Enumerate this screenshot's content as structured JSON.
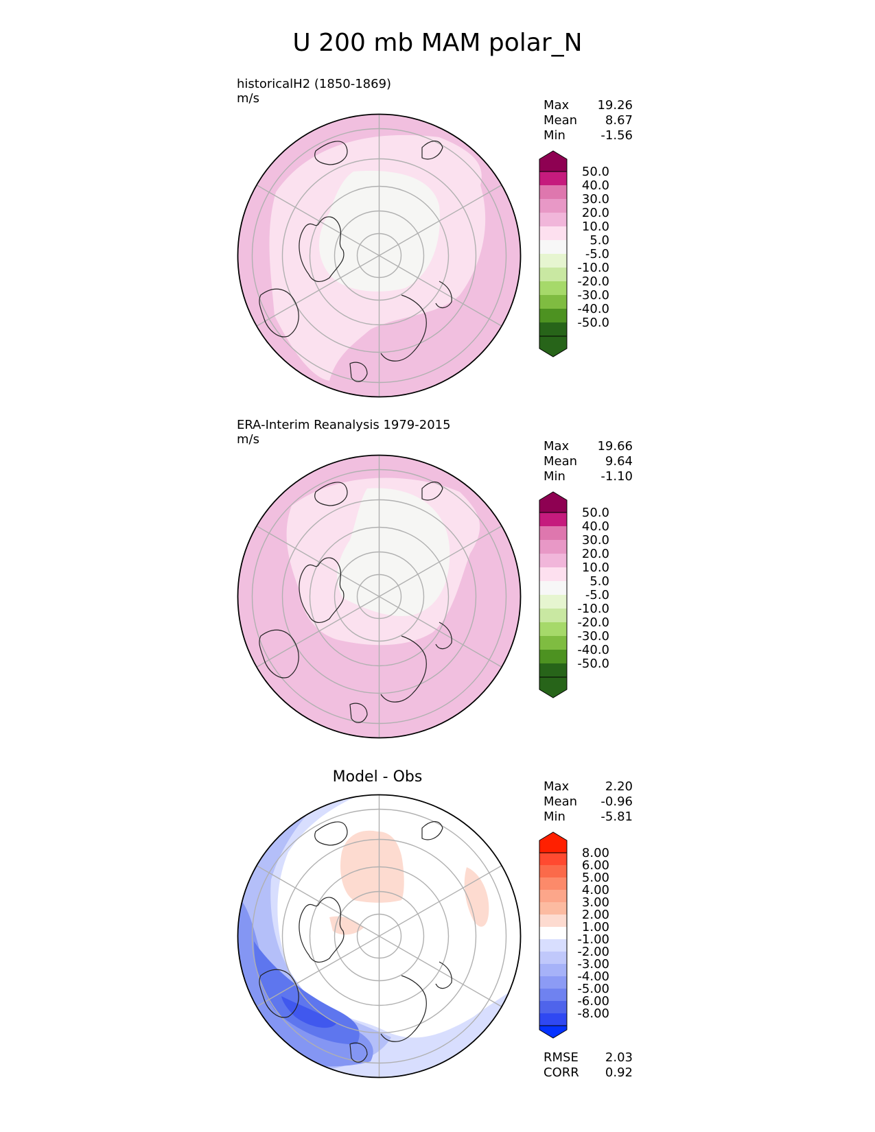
{
  "figure": {
    "title": "U 200 mb MAM polar_N"
  },
  "colors": {
    "land_outline": "#222222",
    "grid": "#b0b0b0",
    "pink_scale": [
      "#f7f7f7",
      "#fde0ef",
      "#f1b6da",
      "#e898c6",
      "#de77ae",
      "#c51b7d",
      "#8e0152"
    ],
    "green_scale": [
      "#f7f7f7",
      "#e6f5d0",
      "#c9e8a2",
      "#a6d96a",
      "#7fbc41",
      "#4d9221",
      "#276419"
    ],
    "diff_pos": [
      "#fddbd0",
      "#fcbba1",
      "#fc9272",
      "#fb6a4a",
      "#ff4a30",
      "#ff2000"
    ],
    "diff_neg": [
      "#d8defe",
      "#c0c8fb",
      "#a6b2f8",
      "#8c9bf5",
      "#6f82f0",
      "#4f64eb",
      "#2f48f2",
      "#0532ff"
    ]
  },
  "chart_data": [
    {
      "type": "polar_contour_map",
      "panel_title": "historicalH2 (1850-1869)",
      "units": "m/s",
      "stats": {
        "max_label": "Max",
        "max": "19.26",
        "mean_label": "Mean",
        "mean": "8.67",
        "min_label": "Min",
        "min": "-1.56"
      },
      "colorbar": {
        "levels": [
          "50.0",
          "40.0",
          "30.0",
          "20.0",
          "10.0",
          "5.0",
          "-5.0",
          "-10.0",
          "-20.0",
          "-30.0",
          "-40.0",
          "-50.0"
        ],
        "extend": "both"
      },
      "projection": "north polar stereographic",
      "pattern": "weak westerlies over pole (-5 to 5), 5-20 m/s mid-latitude ring, strongest over Pacific and Atlantic/Europe sectors"
    },
    {
      "type": "polar_contour_map",
      "panel_title": "ERA-Interim Reanalysis 1979-2015",
      "units": "m/s",
      "stats": {
        "max_label": "Max",
        "max": "19.66",
        "mean_label": "Mean",
        "mean": "9.64",
        "min_label": "Min",
        "min": "-1.10"
      },
      "colorbar": {
        "levels": [
          "50.0",
          "40.0",
          "30.0",
          "20.0",
          "10.0",
          "5.0",
          "-5.0",
          "-10.0",
          "-20.0",
          "-30.0",
          "-40.0",
          "-50.0"
        ],
        "extend": "both"
      },
      "projection": "north polar stereographic",
      "pattern": "weak westerlies over pole and Siberia, 10-20 m/s band over mid-latitudes"
    },
    {
      "type": "polar_contour_map",
      "panel_title": "Model - Obs",
      "stats": {
        "max_label": "Max",
        "max": "2.20",
        "mean_label": "Mean",
        "mean": "-0.96",
        "min_label": "Min",
        "min": "-5.81"
      },
      "colorbar": {
        "levels": [
          "8.00",
          "6.00",
          "5.00",
          "4.00",
          "3.00",
          "2.00",
          "1.00",
          "-1.00",
          "-2.00",
          "-3.00",
          "-4.00",
          "-5.00",
          "-6.00",
          "-8.00"
        ],
        "extend": "both"
      },
      "metrics": {
        "rmse_label": "RMSE",
        "rmse": "2.03",
        "corr_label": "CORR",
        "corr": "0.92"
      },
      "projection": "north polar stereographic",
      "pattern": "negative bias (-1 to -6) over North Pacific/Asia sector, small positive bias (1-2) over Arctic/Barents and Atlantic"
    }
  ]
}
